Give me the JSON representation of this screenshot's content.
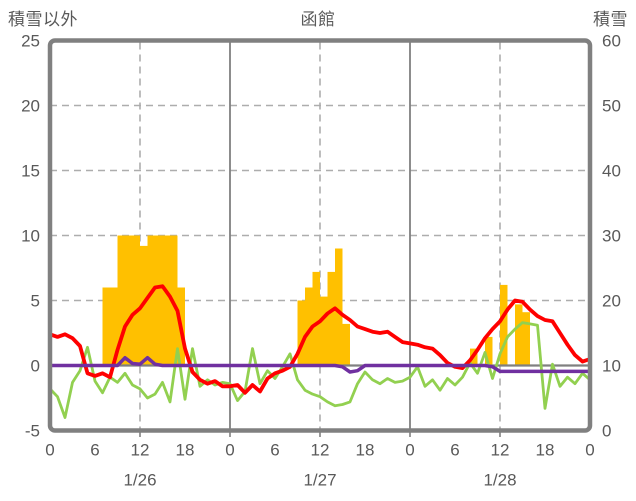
{
  "page": {
    "title_left": "積雪以外",
    "title_center": "函館",
    "title_right": "積雪"
  },
  "chart_data": {
    "type": "combo",
    "title": "函館",
    "left_axis": {
      "label": "積雪以外",
      "min": -5,
      "max": 25,
      "ticks": [
        25,
        20,
        15,
        10,
        5,
        0,
        -5
      ]
    },
    "right_axis": {
      "label": "積雪",
      "min": 0,
      "max": 60,
      "ticks": [
        60,
        50,
        40,
        30,
        20,
        10,
        0
      ]
    },
    "x_axis": {
      "hours_span": 72,
      "tick_hours": [
        0,
        6,
        12,
        18,
        24,
        30,
        36,
        42,
        48,
        54,
        60,
        66,
        72
      ],
      "tick_labels": [
        "0",
        "6",
        "12",
        "18",
        "0",
        "6",
        "12",
        "18",
        "0",
        "6",
        "12",
        "18",
        "0"
      ],
      "date_labels": [
        {
          "label": "1/26",
          "hour": 12
        },
        {
          "label": "1/27",
          "hour": 36
        },
        {
          "label": "1/28",
          "hour": 60
        }
      ],
      "solid_gridline_hours": [
        24,
        48
      ],
      "dashed_gridline_hours": [
        12,
        36,
        60
      ],
      "tick_stub_hours": [
        12,
        24,
        36,
        48,
        60
      ]
    },
    "grid": {
      "horizontal_dashed_ticks": [
        20,
        15,
        10,
        5
      ],
      "zero_line": 0
    },
    "colors": {
      "grid": "#ADADAD",
      "axis": "#808080",
      "text": "#595959",
      "background": "#FFFFFF"
    },
    "series": [
      {
        "name": "orange-bars",
        "type": "bar",
        "axis": "left",
        "color": "#FFC000",
        "points": [
          {
            "hour": 7,
            "value": 6
          },
          {
            "hour": 8,
            "value": 6
          },
          {
            "hour": 9,
            "value": 10
          },
          {
            "hour": 10,
            "value": 10
          },
          {
            "hour": 11,
            "value": 10
          },
          {
            "hour": 12,
            "value": 9.2
          },
          {
            "hour": 13,
            "value": 10
          },
          {
            "hour": 14,
            "value": 10
          },
          {
            "hour": 15,
            "value": 10
          },
          {
            "hour": 16,
            "value": 10
          },
          {
            "hour": 17,
            "value": 6
          },
          {
            "hour": 33,
            "value": 5
          },
          {
            "hour": 34,
            "value": 6
          },
          {
            "hour": 35,
            "value": 7.2
          },
          {
            "hour": 36,
            "value": 5.3
          },
          {
            "hour": 37,
            "value": 7.2
          },
          {
            "hour": 38,
            "value": 9
          },
          {
            "hour": 39,
            "value": 3.2
          },
          {
            "hour": 56,
            "value": 1.3
          },
          {
            "hour": 58,
            "value": 2.2
          },
          {
            "hour": 60,
            "value": 6.2
          },
          {
            "hour": 62,
            "value": 4.7
          },
          {
            "hour": 63,
            "value": 4.1
          }
        ]
      },
      {
        "name": "green-line",
        "type": "line",
        "axis": "left",
        "color": "#92D050",
        "width": 2.8,
        "values": [
          -1.8,
          -2.4,
          -4.0,
          -1.3,
          -0.4,
          1.4,
          -1.2,
          -2.1,
          -0.9,
          -1.3,
          -0.6,
          -1.5,
          -1.8,
          -2.5,
          -2.2,
          -1.3,
          -2.8,
          1.3,
          -2.6,
          1.3,
          -1.6,
          -1.1,
          -1.5,
          -1.3,
          -1.4,
          -2.7,
          -2.0,
          1.3,
          -1.4,
          -0.4,
          -1.0,
          -0.1,
          0.9,
          -1.1,
          -1.9,
          -2.2,
          -2.4,
          -2.8,
          -3.1,
          -3.0,
          -2.8,
          -1.4,
          -0.5,
          -1.1,
          -1.4,
          -1.0,
          -1.3,
          -1.2,
          -0.9,
          -0.1,
          -1.6,
          -1.1,
          -1.9,
          -1.0,
          -1.5,
          -0.9,
          0.2,
          -0.6,
          1.0,
          -1.0,
          0.9,
          2.2,
          2.8,
          3.3,
          3.2,
          3.1,
          -3.3,
          0.1,
          -1.6,
          -0.9,
          -1.4,
          -0.6,
          -1.1
        ]
      },
      {
        "name": "red-line",
        "type": "line",
        "axis": "left",
        "color": "#FF0000",
        "width": 3.8,
        "values": [
          2.4,
          2.2,
          2.4,
          2.1,
          1.5,
          -0.6,
          -0.8,
          -0.6,
          -0.9,
          1.2,
          3.0,
          3.9,
          4.4,
          5.2,
          6.0,
          6.1,
          5.3,
          4.2,
          1.3,
          -0.5,
          -1.1,
          -1.4,
          -1.2,
          -1.6,
          -1.6,
          -1.5,
          -2.1,
          -1.5,
          -2.0,
          -1.0,
          -0.6,
          -0.4,
          -0.1,
          0.9,
          2.2,
          3.0,
          3.4,
          4.0,
          4.4,
          3.9,
          3.5,
          3.0,
          2.8,
          2.6,
          2.5,
          2.6,
          2.2,
          1.8,
          1.7,
          1.6,
          1.4,
          1.3,
          0.8,
          0.2,
          -0.1,
          -0.2,
          0.4,
          1.2,
          2.1,
          2.8,
          3.4,
          4.3,
          5.0,
          4.9,
          4.3,
          3.8,
          3.5,
          3.4,
          2.5,
          1.6,
          0.8,
          0.3,
          0.5
        ]
      },
      {
        "name": "purple-line",
        "type": "line",
        "axis": "right",
        "color": "#7030A0",
        "width": 3.5,
        "values": [
          10,
          10,
          10,
          10,
          10,
          10,
          10,
          10,
          10,
          10,
          11.2,
          10.3,
          10.2,
          11.2,
          10.2,
          10,
          10,
          10,
          10,
          10,
          10,
          10,
          10,
          10,
          10,
          10,
          10,
          10,
          10,
          10,
          10,
          10,
          10,
          10,
          10,
          10,
          10,
          10,
          10,
          9.8,
          9.0,
          9.2,
          10,
          10,
          10,
          10,
          10,
          10,
          10,
          10,
          10,
          10,
          10,
          10,
          10,
          10,
          10,
          10,
          10,
          9.8,
          9.1,
          9.1,
          9.1,
          9.1,
          9.1,
          9.1,
          9.1,
          9.1,
          9.1,
          9.1,
          9.1,
          9.1,
          9.1
        ]
      }
    ]
  }
}
